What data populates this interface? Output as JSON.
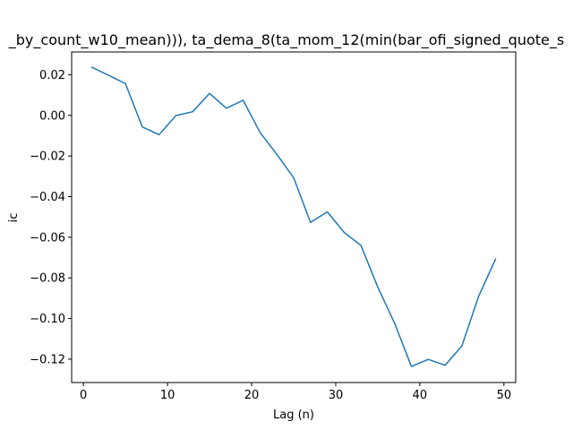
{
  "chart_data": {
    "type": "line",
    "title": "_by_count_w10_mean))), ta_dema_8(ta_mom_12(min(bar_ofi_signed_quote_s",
    "xlabel": "Lag (n)",
    "ylabel": "ic",
    "xlim": [
      -1.4,
      51.4
    ],
    "ylim": [
      -0.1315,
      0.0312
    ],
    "xticks": [
      0,
      10,
      20,
      30,
      40,
      50
    ],
    "yticks": [
      0.02,
      0.0,
      -0.02,
      -0.04,
      -0.06,
      -0.08,
      -0.1,
      -0.12
    ],
    "ytick_labels": [
      "0.02",
      "0.00",
      "−0.02",
      "−0.04",
      "−0.06",
      "−0.08",
      "−0.10",
      "−0.12"
    ],
    "grid": false,
    "color": "#1f77b4",
    "series": [
      {
        "x": [
          1,
          3,
          5,
          7,
          9,
          11,
          13,
          15,
          17,
          19,
          21,
          23,
          25,
          27,
          29,
          31,
          33,
          35,
          37,
          39,
          41,
          43,
          45,
          47,
          49
        ],
        "values": [
          0.0237,
          0.0197,
          0.0156,
          -0.0057,
          -0.0095,
          -0.0001,
          0.0018,
          0.0108,
          0.0035,
          0.0074,
          -0.0084,
          -0.0192,
          -0.0307,
          -0.0527,
          -0.0475,
          -0.0576,
          -0.064,
          -0.0845,
          -0.1023,
          -0.1236,
          -0.1201,
          -0.123,
          -0.1135,
          -0.089,
          -0.0708
        ]
      }
    ]
  }
}
